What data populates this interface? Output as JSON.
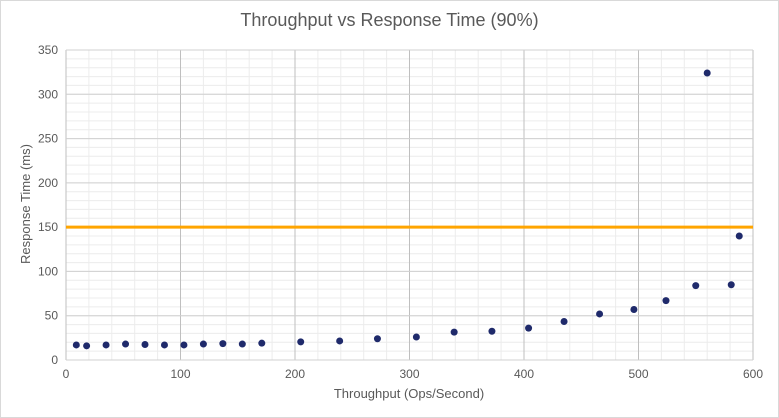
{
  "chart_data": {
    "type": "scatter",
    "title": "Throughput vs Response Time (90%)",
    "xlabel": "Throughput  (Ops/Second)",
    "ylabel": "Response Time (ms)",
    "xlim": [
      0,
      600
    ],
    "ylim": [
      0,
      350
    ],
    "x_ticks": [
      0,
      100,
      200,
      300,
      400,
      500,
      600
    ],
    "y_ticks": [
      0,
      50,
      100,
      150,
      200,
      250,
      300,
      350
    ],
    "grid": true,
    "threshold": {
      "value": 150,
      "color": "#FFA500"
    },
    "point_color": "#1F2A6B",
    "points": [
      {
        "x": 9,
        "y": 17
      },
      {
        "x": 18,
        "y": 16
      },
      {
        "x": 35,
        "y": 17
      },
      {
        "x": 52,
        "y": 18
      },
      {
        "x": 69,
        "y": 17.5
      },
      {
        "x": 86,
        "y": 17
      },
      {
        "x": 103,
        "y": 17
      },
      {
        "x": 120,
        "y": 18
      },
      {
        "x": 137,
        "y": 18.5
      },
      {
        "x": 154,
        "y": 18
      },
      {
        "x": 171,
        "y": 19
      },
      {
        "x": 205,
        "y": 20.5
      },
      {
        "x": 239,
        "y": 21.5
      },
      {
        "x": 272,
        "y": 24
      },
      {
        "x": 306,
        "y": 26
      },
      {
        "x": 339,
        "y": 31.5
      },
      {
        "x": 372,
        "y": 32.5
      },
      {
        "x": 404,
        "y": 36
      },
      {
        "x": 435,
        "y": 43.5
      },
      {
        "x": 466,
        "y": 52
      },
      {
        "x": 496,
        "y": 57
      },
      {
        "x": 524,
        "y": 67
      },
      {
        "x": 550,
        "y": 84
      },
      {
        "x": 560,
        "y": 324
      },
      {
        "x": 581,
        "y": 85
      },
      {
        "x": 588,
        "y": 140
      }
    ]
  }
}
